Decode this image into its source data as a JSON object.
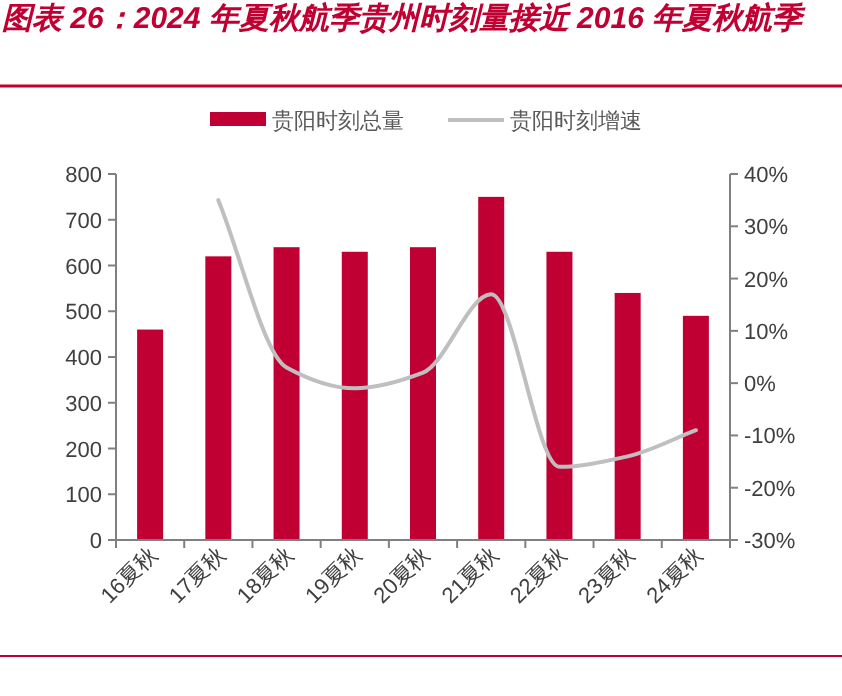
{
  "chart_data": {
    "type": "bar",
    "title": "图表 26：2024 年夏秋航季贵州时刻量接近 2016 年夏秋航季",
    "categories": [
      "16夏秋",
      "17夏秋",
      "18夏秋",
      "19夏秋",
      "20夏秋",
      "21夏秋",
      "22夏秋",
      "23夏秋",
      "24夏秋"
    ],
    "series": [
      {
        "name": "贵阳时刻总量",
        "color": "#c00032",
        "values": [
          460,
          620,
          640,
          630,
          640,
          750,
          630,
          540,
          490
        ]
      },
      {
        "name": "贵阳时刻增速",
        "color": "#bfbfbf",
        "type": "line",
        "axis": "y2",
        "values": [
          null,
          35,
          3,
          -1,
          2,
          17,
          -16,
          -14,
          -9
        ]
      }
    ],
    "ylim": [
      0,
      800
    ],
    "yticks": [
      0,
      100,
      200,
      300,
      400,
      500,
      600,
      700,
      800
    ],
    "y2lim": [
      -30,
      40
    ],
    "y2ticks": [
      {
        "value": -30,
        "label": "-30%"
      },
      {
        "value": -20,
        "label": "-20%"
      },
      {
        "value": -10,
        "label": "-10%"
      },
      {
        "value": 0,
        "label": "0%"
      },
      {
        "value": 10,
        "label": "10%"
      },
      {
        "value": 20,
        "label": "20%"
      },
      {
        "value": 30,
        "label": "30%"
      },
      {
        "value": 40,
        "label": "40%"
      }
    ],
    "legend": "top",
    "grid": false,
    "marker": "none"
  }
}
